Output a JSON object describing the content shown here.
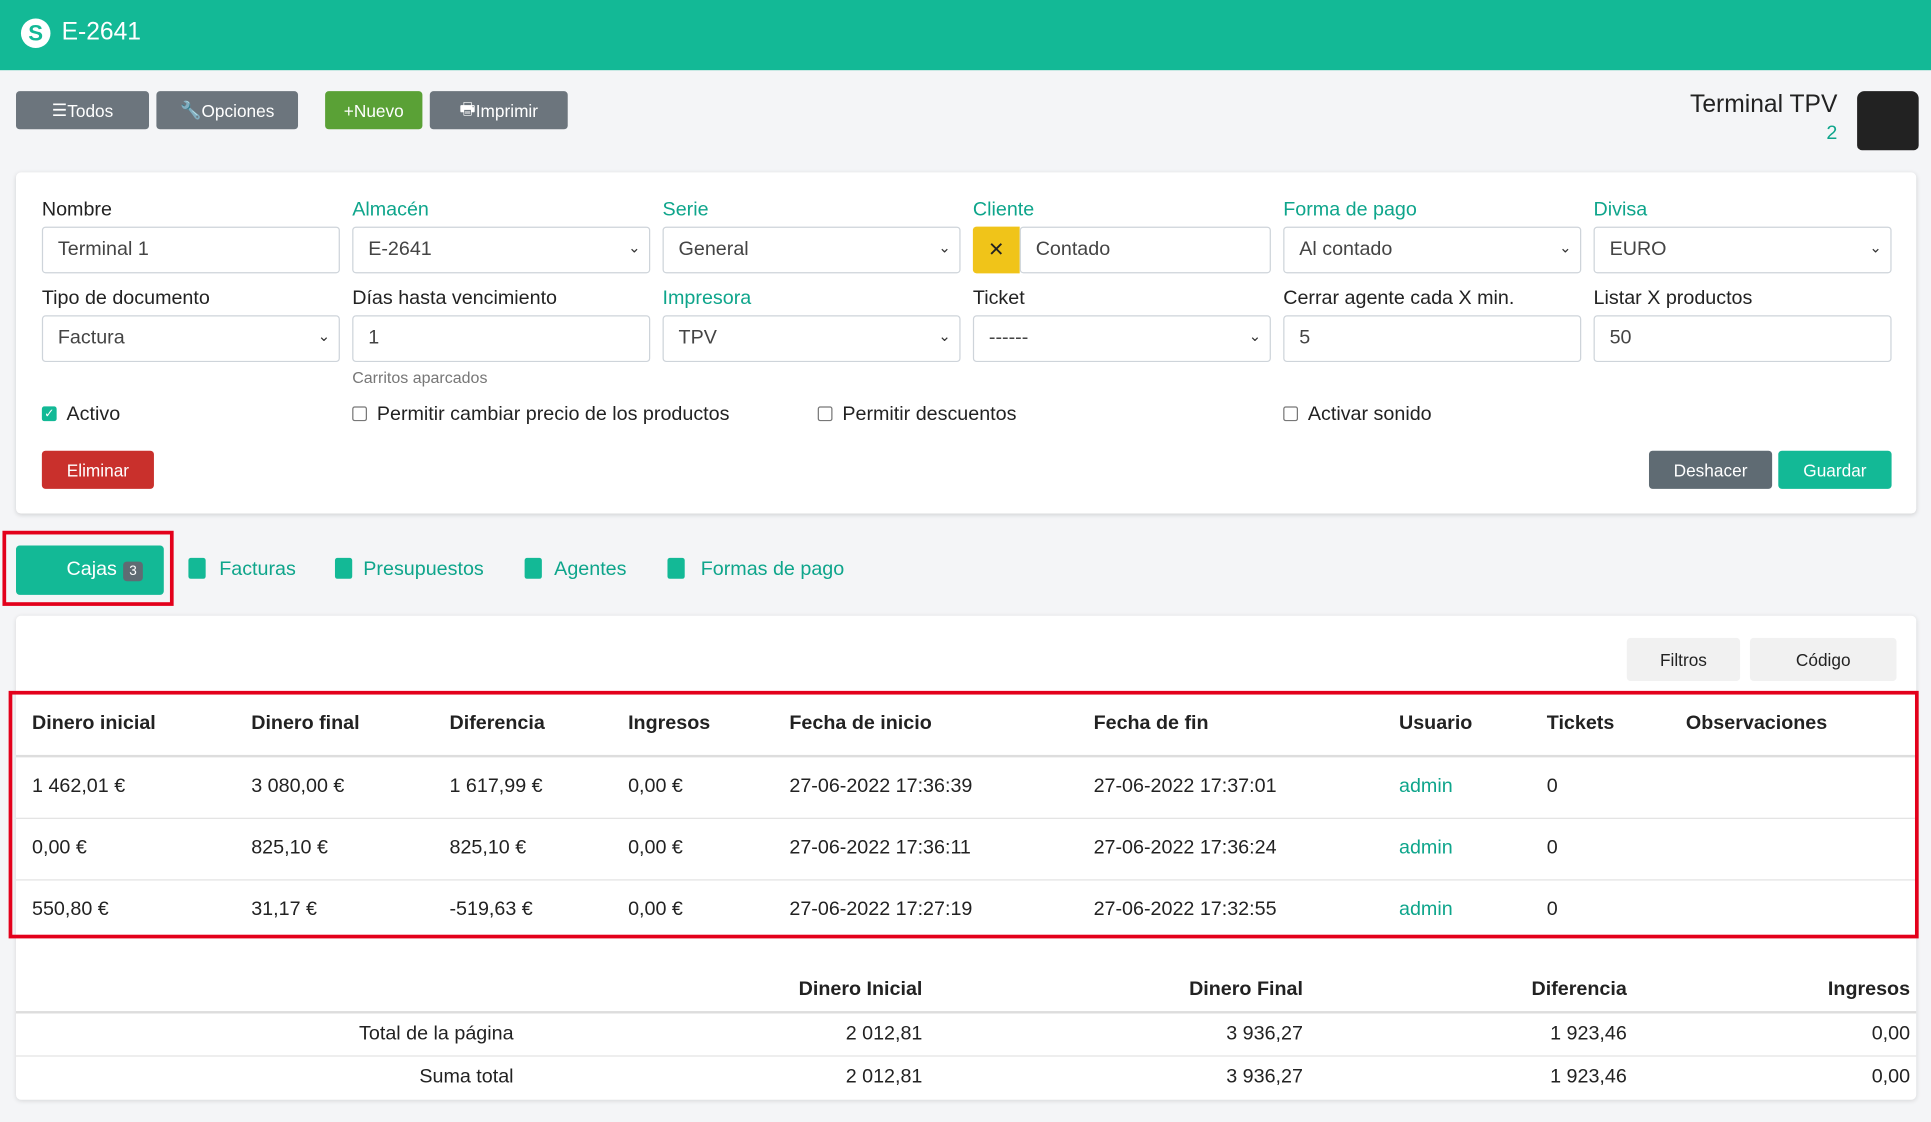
{
  "header": {
    "title": "E-2641"
  },
  "toolbar": {
    "buttons": [
      "Todos",
      "Opciones",
      "Nuevo",
      "Imprimir"
    ]
  },
  "terminal": {
    "title": "Terminal TPV",
    "number": 2
  },
  "form": {
    "fields": [
      {
        "label": "Nombre",
        "value": "Terminal 1"
      },
      {
        "label": "Almacén",
        "value": "E-2641"
      },
      {
        "label": "Serie",
        "value": "General"
      },
      {
        "label": "Cliente",
        "value": "Contado"
      },
      {
        "label": "Forma de pago",
        "value": "Al contado"
      },
      {
        "label": "Divisa",
        "value": "EURO"
      },
      {
        "label": "Tipo de documento",
        "value": "Factura"
      },
      {
        "label": "Días hasta vencimiento",
        "value": 1,
        "help": "Carritos aparcados"
      },
      {
        "label": "Impresora",
        "value": "TPV"
      },
      {
        "label": "Ticket",
        "value": "------"
      },
      {
        "label": "Cerrar agente cada X min.",
        "value": 5
      },
      {
        "label": "Listar X productos",
        "value": 50
      }
    ],
    "checkboxes": [
      {
        "label": "Activo",
        "checked": true
      },
      {
        "label": "Permitir cambiar precio de los productos",
        "checked": false
      },
      {
        "label": "Permitir descuentos",
        "checked": false
      },
      {
        "label": "Activar sonido",
        "checked": false
      }
    ],
    "buttons": [
      "Eliminar",
      "Deshacer",
      "Guardar"
    ]
  },
  "tabs": [
    {
      "label": "Cajas",
      "badge": 3
    },
    {
      "label": "Facturas"
    },
    {
      "label": "Presupuestos"
    },
    {
      "label": "Agentes"
    },
    {
      "label": "Formas de pago"
    }
  ],
  "list_toolbar": [
    "Filtros",
    "Código"
  ],
  "table": {
    "columns": [
      "Dinero inicial",
      "Dinero final",
      "Diferencia",
      "Ingresos",
      "Fecha de inicio",
      "Fecha de fin",
      "Usuario",
      "Tickets",
      "Observaciones"
    ],
    "rows": [
      [
        "1 462,01 €",
        "3 080,00 €",
        "1 617,99 €",
        "0,00 €",
        "27-06-2022 17:36:39",
        "27-06-2022 17:37:01",
        "admin",
        0
      ],
      [
        "0,00 €",
        "825,10 €",
        "825,10 €",
        "0,00 €",
        "27-06-2022 17:36:11",
        "27-06-2022 17:36:24",
        "admin",
        0
      ],
      [
        "550,80 €",
        "31,17 €",
        "-519,63 €",
        "0,00 €",
        "27-06-2022 17:27:19",
        "27-06-2022 17:32:55",
        "admin",
        0
      ]
    ]
  },
  "totals": {
    "columns": [
      "Dinero Inicial",
      "Dinero Final",
      "Diferencia",
      "Ingresos"
    ],
    "rows": [
      {
        "label": "Total de la página",
        "values": [
          "2 012,81",
          "3 936,27",
          "1 923,46",
          "0,00"
        ]
      },
      {
        "label": "Suma total",
        "values": [
          "2 012,81",
          "3 936,27",
          "1 923,46",
          "0,00"
        ]
      }
    ]
  }
}
